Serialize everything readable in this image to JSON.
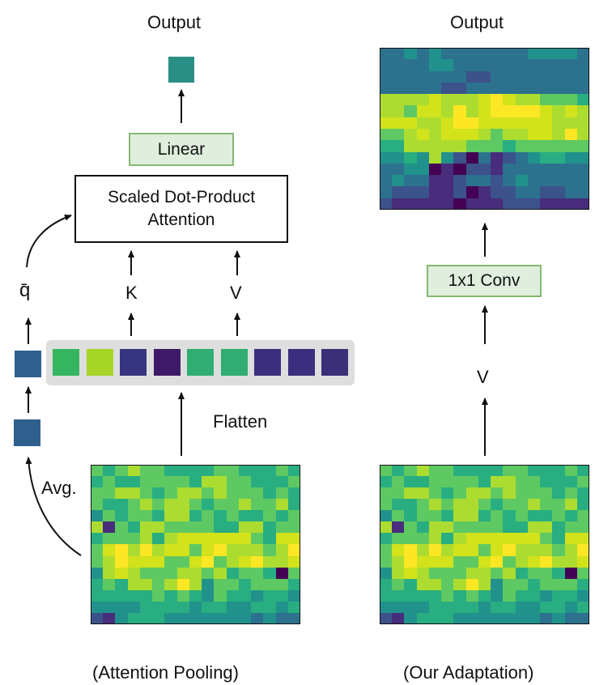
{
  "left_panel": {
    "output_label": "Output",
    "linear_label": "Linear",
    "attention_line1": "Scaled Dot-Product",
    "attention_line2": "Attention",
    "q_label": "q̄",
    "k_label": "K",
    "v_label": "V",
    "flatten_label": "Flatten",
    "avg_label": "Avg.",
    "caption": "(Attention Pooling)",
    "output_token_color": "#2a8f84",
    "pooled_token_color": "#2f5f8d",
    "flattened_token_colors": [
      "#35b55f",
      "#a6d427",
      "#37357f",
      "#3d1967",
      "#2fad72",
      "#2fad72",
      "#3c2e7e",
      "#3c2e7e",
      "#3b2f78"
    ]
  },
  "right_panel": {
    "output_label": "Output",
    "conv_label": "1x1 Conv",
    "v_label": "V",
    "caption": "(Our Adaptation)"
  },
  "colors": {
    "box_fill": "#dfeedd",
    "box_border": "#86b873",
    "token_strip": "#dedede"
  },
  "colormap": "viridis",
  "feature_map_input": {
    "rows": 14,
    "cols": 17,
    "values": [
      "65676655556655565",
      "56556666577665556",
      "66776567767666565",
      "65567677656676675",
      "46566577565655656",
      "71657766665577566",
      "56667578888886588",
      "68979788689777679",
      "67988866896789778",
      "47876667767566506",
      "56577679746656665",
      "55555656546554554",
      "44445555455445545",
      "21455544444443433"
    ]
  },
  "feature_map_output": {
    "rows": 14,
    "cols": 17,
    "values": [
      "33434333333344443",
      "33334433333333333",
      "33333332233333333",
      "33333223333333333",
      "77778777898776665",
      "77688797899998787",
      "88877899888888777",
      "66787888767788797",
      "55777776665666666",
      "44547420312345544",
      "33440102213333333",
      "34331123323433333",
      "32221120122332233",
      "21111101112221111"
    ]
  }
}
